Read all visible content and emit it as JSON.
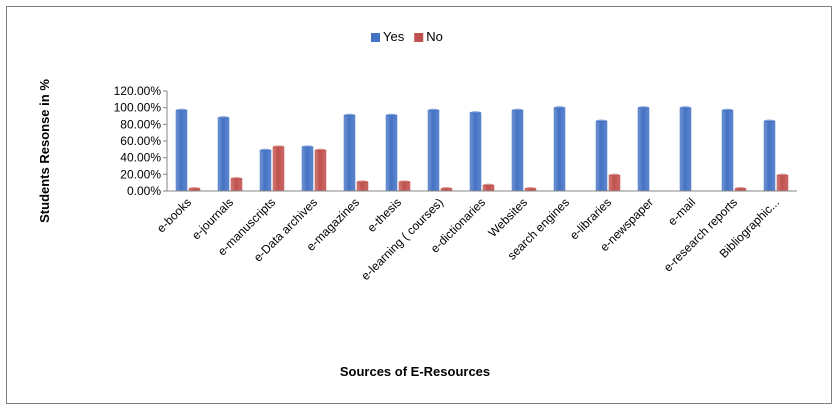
{
  "chart_data": {
    "type": "bar",
    "title": "",
    "xlabel": "Sources of E-Resources",
    "ylabel": "Students Resonse in %",
    "ylim": [
      0,
      120
    ],
    "y_ticks": [
      "0.00%",
      "20.00%",
      "40.00%",
      "60.00%",
      "80.00%",
      "100.00%",
      "120.00%"
    ],
    "grid": false,
    "legend_position": "top",
    "categories": [
      "e-books",
      "e-journals",
      "e-manuscripts",
      "e-Data archives",
      "e-magazines",
      "e-thesis",
      "e-learning ( courses)",
      "e-dictionaries",
      "Websites",
      "search engines",
      "e-libraries",
      "e-newspaper",
      "e-mail",
      "e-research reports",
      "Bibliographic..."
    ],
    "series": [
      {
        "name": "Yes",
        "color": "#4472c4",
        "values": [
          97,
          88,
          49,
          53,
          91,
          91,
          97,
          94,
          97,
          100,
          84,
          100,
          100,
          97,
          84
        ]
      },
      {
        "name": "No",
        "color": "#c0504d",
        "values": [
          3,
          15,
          53,
          49,
          11,
          11,
          3,
          7,
          3,
          0,
          19,
          0,
          0,
          3,
          19
        ]
      }
    ]
  }
}
